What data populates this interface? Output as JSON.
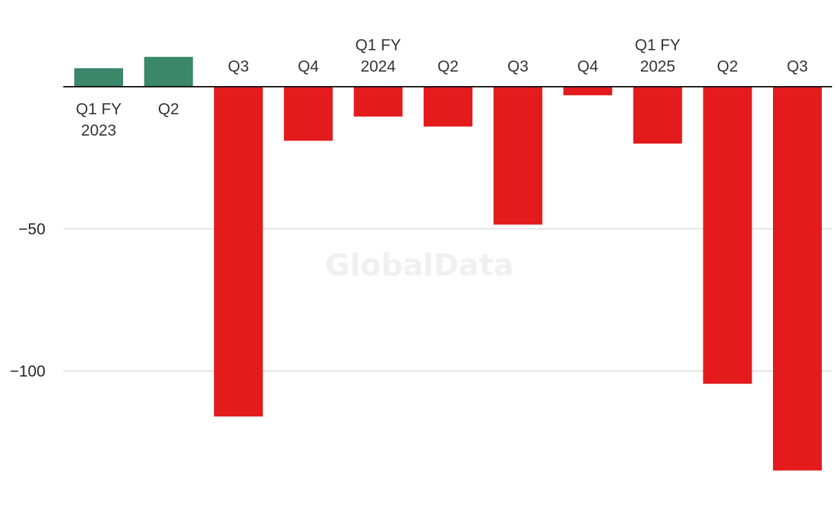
{
  "chart_data": {
    "type": "bar",
    "categories": [
      [
        "Q1 FY",
        "2023"
      ],
      [
        "Q2"
      ],
      [
        "Q3"
      ],
      [
        "Q4"
      ],
      [
        "Q1 FY",
        "2024"
      ],
      [
        "Q2"
      ],
      [
        "Q3"
      ],
      [
        "Q4"
      ],
      [
        "Q1 FY",
        "2025"
      ],
      [
        "Q2"
      ],
      [
        "Q3"
      ]
    ],
    "values": [
      6.5,
      10.5,
      -116,
      -19,
      -10.5,
      -14,
      -48.5,
      -3,
      -20,
      -104.5,
      -135
    ],
    "ylim": [
      -145,
      12
    ],
    "yticks": [
      -50,
      -100
    ],
    "grid": true,
    "colors": {
      "positive": "#3a876a",
      "negative": "#e31b1d",
      "axis": "#111111",
      "grid": "#d9d9d9"
    },
    "watermark": "GlobalData"
  }
}
